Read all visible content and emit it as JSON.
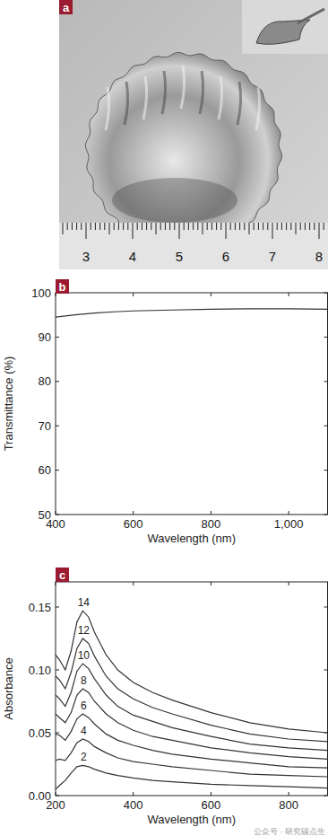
{
  "photo": {
    "panel_label": "a",
    "ruler_labels": [
      3,
      4,
      5,
      6,
      7,
      8
    ]
  },
  "watermark": "公众号 · 研究碳点生",
  "chart_data": [
    {
      "panel_label": "b",
      "type": "line",
      "x_label": "Wavelength (nm)",
      "y_label": "Transmittance (%)",
      "x": [
        400,
        450,
        500,
        550,
        600,
        700,
        800,
        900,
        1000,
        1100
      ],
      "values": [
        94.5,
        95.0,
        95.4,
        95.7,
        95.9,
        96.1,
        96.3,
        96.4,
        96.4,
        96.3
      ],
      "color": "#333333",
      "xlim": [
        400,
        1100
      ],
      "ylim": [
        50,
        100
      ],
      "xticks": [
        400,
        600,
        800,
        {
          "value": 1000,
          "label": "1,000"
        }
      ],
      "yticks": [
        50,
        60,
        70,
        80,
        90,
        100
      ],
      "grid": false
    },
    {
      "panel_label": "c",
      "type": "line",
      "x_label": "Wavelength (nm)",
      "y_label": "Absorbance",
      "x": [
        200,
        210,
        225,
        240,
        255,
        270,
        285,
        300,
        330,
        360,
        400,
        450,
        500,
        600,
        700,
        800,
        900
      ],
      "series": [
        {
          "name": "14",
          "color": "#333333",
          "values": [
            0.112,
            0.108,
            0.1,
            0.115,
            0.138,
            0.147,
            0.142,
            0.13,
            0.112,
            0.1,
            0.09,
            0.082,
            0.076,
            0.066,
            0.058,
            0.053,
            0.05
          ]
        },
        {
          "name": "12",
          "color": "#333333",
          "values": [
            0.095,
            0.092,
            0.085,
            0.098,
            0.117,
            0.125,
            0.121,
            0.111,
            0.095,
            0.085,
            0.077,
            0.07,
            0.065,
            0.056,
            0.049,
            0.045,
            0.043
          ]
        },
        {
          "name": "10",
          "color": "#333333",
          "values": [
            0.08,
            0.077,
            0.071,
            0.082,
            0.099,
            0.105,
            0.101,
            0.093,
            0.08,
            0.071,
            0.064,
            0.059,
            0.054,
            0.047,
            0.041,
            0.038,
            0.036
          ]
        },
        {
          "name": "8",
          "color": "#333333",
          "values": [
            0.065,
            0.062,
            0.058,
            0.066,
            0.08,
            0.085,
            0.082,
            0.075,
            0.065,
            0.058,
            0.052,
            0.047,
            0.044,
            0.038,
            0.034,
            0.031,
            0.029
          ]
        },
        {
          "name": "6",
          "color": "#333333",
          "values": [
            0.049,
            0.048,
            0.044,
            0.051,
            0.061,
            0.065,
            0.062,
            0.057,
            0.049,
            0.044,
            0.04,
            0.036,
            0.033,
            0.029,
            0.026,
            0.023,
            0.022
          ]
        },
        {
          "name": "4",
          "color": "#333333",
          "values": [
            0.028,
            0.029,
            0.028,
            0.034,
            0.042,
            0.045,
            0.043,
            0.039,
            0.034,
            0.03,
            0.027,
            0.025,
            0.023,
            0.02,
            0.017,
            0.016,
            0.015
          ]
        },
        {
          "name": "2",
          "color": "#333333",
          "values": [
            0.005,
            0.008,
            0.012,
            0.018,
            0.023,
            0.024,
            0.023,
            0.021,
            0.018,
            0.016,
            0.014,
            0.012,
            0.011,
            0.009,
            0.008,
            0.007,
            0.006
          ]
        }
      ],
      "xlim": [
        200,
        900
      ],
      "ylim": [
        0,
        0.17
      ],
      "xticks": [
        200,
        400,
        600,
        800
      ],
      "yticks": [
        {
          "value": 0,
          "label": "0.00"
        },
        {
          "value": 0.05,
          "label": "0.05"
        },
        {
          "value": 0.1,
          "label": "0.10"
        },
        {
          "value": 0.15,
          "label": "0.15"
        }
      ],
      "grid": false
    }
  ]
}
